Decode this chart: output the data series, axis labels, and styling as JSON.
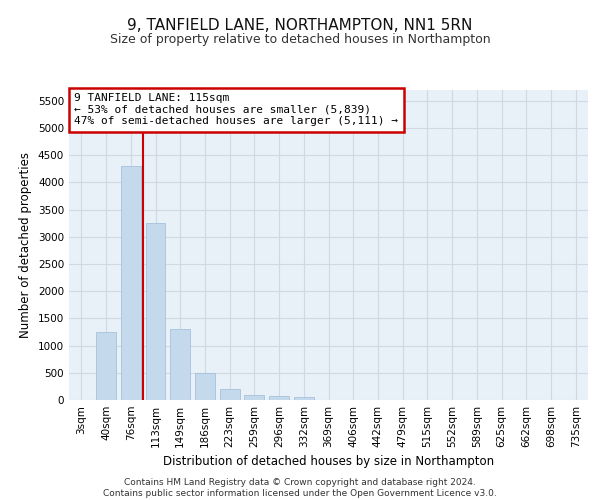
{
  "title1": "9, TANFIELD LANE, NORTHAMPTON, NN1 5RN",
  "title2": "Size of property relative to detached houses in Northampton",
  "xlabel": "Distribution of detached houses by size in Northampton",
  "ylabel": "Number of detached properties",
  "footer1": "Contains HM Land Registry data © Crown copyright and database right 2024.",
  "footer2": "Contains public sector information licensed under the Open Government Licence v3.0.",
  "annotation_line1": "9 TANFIELD LANE: 115sqm",
  "annotation_line2": "← 53% of detached houses are smaller (5,839)",
  "annotation_line3": "47% of semi-detached houses are larger (5,111) →",
  "bar_color": "#c5d9ec",
  "bar_edge_color": "#9dbbd8",
  "highlight_color": "#cc0000",
  "red_line_bar_index": 2,
  "categories": [
    "3sqm",
    "40sqm",
    "76sqm",
    "113sqm",
    "149sqm",
    "186sqm",
    "223sqm",
    "259sqm",
    "296sqm",
    "332sqm",
    "369sqm",
    "406sqm",
    "442sqm",
    "479sqm",
    "515sqm",
    "552sqm",
    "589sqm",
    "625sqm",
    "662sqm",
    "698sqm",
    "735sqm"
  ],
  "values": [
    0,
    1250,
    4300,
    3250,
    1300,
    500,
    200,
    100,
    75,
    50,
    0,
    0,
    0,
    0,
    0,
    0,
    0,
    0,
    0,
    0,
    0
  ],
  "ylim": [
    0,
    5700
  ],
  "yticks": [
    0,
    500,
    1000,
    1500,
    2000,
    2500,
    3000,
    3500,
    4000,
    4500,
    5000,
    5500
  ],
  "grid_color": "#d0d8e4",
  "bg_color": "#e8f0f8",
  "title1_fontsize": 11,
  "title2_fontsize": 9,
  "xlabel_fontsize": 8.5,
  "ylabel_fontsize": 8.5,
  "tick_fontsize": 7.5,
  "annotation_fontsize": 8,
  "footer_fontsize": 6.5
}
